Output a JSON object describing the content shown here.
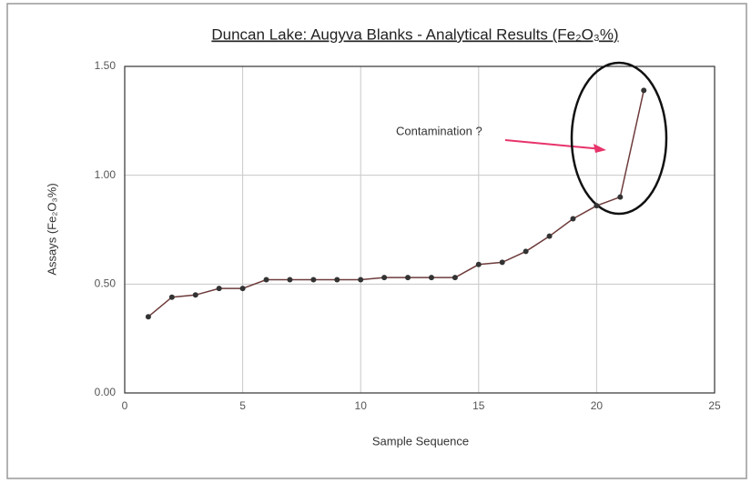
{
  "chart_data": {
    "type": "line",
    "title": "Duncan Lake: Augyva Blanks - Analytical Results  (Fe₂O₃%)",
    "x_label": "Sample Sequence",
    "y_label": "Assays (Fe₂O₃%)",
    "annotation": "Contamination  ?",
    "x": [
      1,
      2,
      3,
      4,
      5,
      6,
      7,
      8,
      9,
      10,
      11,
      12,
      13,
      14,
      15,
      16,
      17,
      18,
      19,
      20,
      21,
      22
    ],
    "series": [
      {
        "color": "#6e3b3b",
        "values": [
          0.35,
          0.44,
          0.45,
          0.48,
          0.48,
          0.52,
          0.52,
          0.52,
          0.52,
          0.52,
          0.53,
          0.53,
          0.53,
          0.53,
          0.59,
          0.6,
          0.65,
          0.72,
          0.8,
          0.86,
          0.9,
          1.39
        ]
      }
    ],
    "xlim": [
      0,
      25
    ],
    "xticks": [
      0,
      5,
      10,
      15,
      20,
      25
    ],
    "ylim": [
      0,
      1.5
    ],
    "yticks": [
      {
        "value": 0,
        "label": "0.00"
      },
      {
        "value": 0.5,
        "label": "0.50"
      },
      {
        "value": 1,
        "label": "1.00"
      },
      {
        "value": 1.5,
        "label": "1.50"
      }
    ],
    "grid": true
  }
}
